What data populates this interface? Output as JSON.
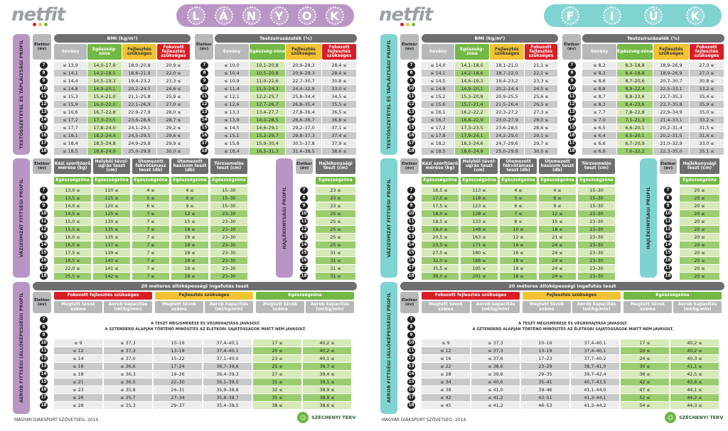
{
  "colors": {
    "girls": "#b995c5",
    "boys": "#7fd3d1",
    "green": "#72b844",
    "lgreen": "#d6e9b8",
    "yellow": "#f1c232",
    "red": "#d71e27",
    "gray": "#6d6e70",
    "lgray": "#d9d9d9"
  },
  "logo": {
    "text": "netfit"
  },
  "footer": {
    "text": "MAGYAR DIÁKSPORT SZÖVETSÉG, 2014.",
    "szechenyi": "SZÉCHENYI TERV"
  },
  "common": {
    "profile1": "TESTÖSSZETÉTEL ÉS TÁPLÁLTSÁGI PROFIL",
    "profile2": "VÁZIZOMZAT FITTSÉGI PROFIL",
    "profile3": "HAJLÉKONYSÁGI PROFIL",
    "profile4": "AEROB FITTSÉGI (ÁLLÓKÉPESSÉGI) PROFIL",
    "age_head": "Életkor (év)",
    "bmi_head": "BMI (kg/m²)",
    "fat_head": "Testzsírszázalék (%)",
    "bmi_cols": [
      "Sovány",
      "Egészség-zóna",
      "Fejlesztés szükséges",
      "Fokozott fejlesztés szükséges"
    ],
    "musc_cols": [
      "Kézi szorítóerő mérése (kg)",
      "Helybõl távol-ugrás teszt (cm)",
      "Ütemezett fekvõtámasz teszt (db)",
      "Ütemezett hasizom teszt (db)",
      "Törzsemelés teszt (cm)"
    ],
    "flex_col": "Hajlékonysági teszt (cm)",
    "zone": "Egészségzóna",
    "aerob_head": "20 méteres állóképességi ingafutás teszt",
    "aerob_zones": [
      "Fokozott fejlesztés szükséges",
      "Fejlesztés szükséges",
      "Egészségzóna"
    ],
    "aerob_sub": [
      "Megtett távok száma",
      "Aerob kapacitás (ml/kg/min)"
    ],
    "note1": "A TESZT MEGISMERÉSE ÉS VÉGREHAJTÁSA JAVASOLT.",
    "note2": "A SZTENDERD ALAPJÁN TÖRTÉNŐ MINŐSÍTÉS AZ ÉLETKORI SAJÁTOSSÁGOK MIATT NEM JAVASOLT.",
    "ages": [
      "7",
      "8",
      "9",
      "10",
      "11",
      "12",
      "13",
      "14",
      "15",
      "16",
      "17",
      "18"
    ]
  },
  "girls": {
    "title": [
      "L",
      "Á",
      "N",
      "Y",
      "O",
      "K"
    ],
    "bmi": [
      [
        "≤ 13,9",
        "14,0–17,9",
        "18,0–20,8",
        "20,9 ≤"
      ],
      [
        "≤ 14,1",
        "14,2–18,5",
        "18,6–21,9",
        "22,0 ≤"
      ],
      [
        "≤ 14,4",
        "14,5–19,3",
        "19,4–23,2",
        "23,3 ≤"
      ],
      [
        "≤ 14,8",
        "14,9–20,1",
        "20,2–24,5",
        "24,6 ≤"
      ],
      [
        "≤ 15,3",
        "15,4–21,0",
        "21,1–25,8",
        "25,9 ≤"
      ],
      [
        "≤ 15,9",
        "16,0–22,0",
        "22,1–26,9",
        "27,0 ≤"
      ],
      [
        "≤ 16,6",
        "16,7–22,8",
        "22,9–27,9",
        "28,0 ≤"
      ],
      [
        "≤ 17,2",
        "17,3–23,5",
        "23,6–28,6",
        "28,7 ≤"
      ],
      [
        "≤ 17,7",
        "17,8–24,0",
        "24,1–29,1",
        "29,2 ≤"
      ],
      [
        "≤ 18,1",
        "18,2–24,4",
        "24,5–29,5",
        "29,6 ≤"
      ],
      [
        "≤ 18,4",
        "18,5–24,8",
        "24,9–29,8",
        "29,9 ≤"
      ],
      [
        "≤ 18,5",
        "18,6–24,9",
        "25,0–29,9",
        "30,0 ≤"
      ]
    ],
    "fat": [
      [
        "≤ 10,0",
        "10,1–20,8",
        "20,9–28,3",
        "28,4 ≤"
      ],
      [
        "≤ 10,4",
        "10,5–20,8",
        "20,9–28,3",
        "28,4 ≤"
      ],
      [
        "≤ 10,9",
        "11,0–22,6",
        "22,7–30,7",
        "30,8 ≤"
      ],
      [
        "≤ 11,4",
        "11,5–24,3",
        "24,4–32,9",
        "33,0 ≤"
      ],
      [
        "≤ 12,1",
        "12,2–25,7",
        "25,8–34,4",
        "34,5 ≤"
      ],
      [
        "≤ 12,6",
        "12,7–26,7",
        "26,8–35,4",
        "35,5 ≤"
      ],
      [
        "≤ 13,3",
        "13,4–27,7",
        "27,8–36,4",
        "36,5 ≤"
      ],
      [
        "≤ 13,9",
        "14,0–28,5",
        "28,6–36,7",
        "36,8 ≤"
      ],
      [
        "≤ 14,5",
        "14,6–29,1",
        "29,2–37,0",
        "37,1 ≤"
      ],
      [
        "≤ 15,1",
        "15,2–29,7",
        "29,8–37,3",
        "37,4 ≤"
      ],
      [
        "≤ 15,8",
        "15,9–30,4",
        "30,5–37,8",
        "37,9 ≤"
      ],
      [
        "≤ 16,4",
        "16,5–31,3",
        "31,4–38,5",
        "38,6 ≤"
      ]
    ],
    "musc": [
      [
        "13,0 ≤",
        "110 ≤",
        "4 ≤",
        "4 ≤",
        "15–30"
      ],
      [
        "13,5 ≤",
        "115 ≤",
        "5 ≤",
        "6 ≤",
        "15–30"
      ],
      [
        "14,0 ≤",
        "120 ≤",
        "6 ≤",
        "9 ≤",
        "15–30"
      ],
      [
        "14,5 ≤",
        "125 ≤",
        "7 ≤",
        "12 ≤",
        "23–30"
      ],
      [
        "15,0 ≤",
        "130 ≤",
        "7 ≤",
        "15 ≤",
        "23–30"
      ],
      [
        "15,5 ≤",
        "135 ≤",
        "7 ≤",
        "18 ≤",
        "23–30"
      ],
      [
        "16,0 ≤",
        "135 ≤",
        "7 ≤",
        "18 ≤",
        "23–30"
      ],
      [
        "16,5 ≤",
        "137 ≤",
        "7 ≤",
        "18 ≤",
        "23–30"
      ],
      [
        "17,5 ≤",
        "139 ≤",
        "7 ≤",
        "18 ≤",
        "23–30"
      ],
      [
        "19,5 ≤",
        "140 ≤",
        "7 ≤",
        "18 ≤",
        "23–30"
      ],
      [
        "22,0 ≤",
        "141 ≤",
        "7 ≤",
        "18 ≤",
        "23–30"
      ],
      [
        "25,5 ≤",
        "142 ≤",
        "7 ≤",
        "18 ≤",
        "23–30"
      ]
    ],
    "flex": [
      "23 ≤",
      "23 ≤",
      "23 ≤",
      "25 ≤",
      "25 ≤",
      "25 ≤",
      "25 ≤",
      "25 ≤",
      "31 ≤",
      "31 ≤",
      "31 ≤",
      "31 ≤"
    ],
    "aerob": [
      [
        "≤ 9",
        "≤ 37,3",
        "10–16",
        "37,4–40,1",
        "17 ≤",
        "40,2 ≤"
      ],
      [
        "≤ 12",
        "≤ 37,3",
        "13–19",
        "37,4–40,1",
        "20 ≤",
        "40,2 ≤"
      ],
      [
        "≤ 14",
        "≤ 37,0",
        "15–22",
        "37,1–40,0",
        "23 ≤",
        "40,1 ≤"
      ],
      [
        "≤ 16",
        "≤ 36,6",
        "17–24",
        "36,7–39,6",
        "25 ≤",
        "39,7 ≤"
      ],
      [
        "≤ 18",
        "≤ 36,3",
        "19–26",
        "36,4–39,3",
        "27 ≤",
        "39,4 ≤"
      ],
      [
        "≤ 21",
        "≤ 36,0",
        "22–30",
        "36,1–39,0",
        "31 ≤",
        "39,1 ≤"
      ],
      [
        "≤ 23",
        "≤ 35,8",
        "24–31",
        "35,9–38,8",
        "32 ≤",
        "38,9 ≤"
      ],
      [
        "≤ 26",
        "≤ 35,7",
        "27–34",
        "35,8–38,7",
        "35 ≤",
        "38,8 ≤"
      ],
      [
        "≤ 28",
        "≤ 35,3",
        "29–37",
        "35,4–38,5",
        "38 ≤",
        "38,6 ≤"
      ]
    ]
  },
  "boys": {
    "title": [
      "F",
      "I",
      "Ú",
      "K"
    ],
    "bmi": [
      [
        "≤ 14,0",
        "14,1–18,0",
        "18,1–21,0",
        "21,1 ≤"
      ],
      [
        "≤ 14,1",
        "14,2–18,6",
        "18,7–22,0",
        "22,1 ≤"
      ],
      [
        "≤ 14,5",
        "14,6–19,3",
        "19,4–23,2",
        "23,3 ≤"
      ],
      [
        "≤ 14,8",
        "14,9–20,1",
        "20,2–24,4",
        "24,5 ≤"
      ],
      [
        "≤ 15,2",
        "15,3–20,8",
        "20,9–25,5",
        "25,6 ≤"
      ],
      [
        "≤ 15,6",
        "15,7–21,4",
        "21,5–26,4",
        "26,5 ≤"
      ],
      [
        "≤ 16,1",
        "16,2–22,2",
        "22,3–27,2",
        "27,3 ≤"
      ],
      [
        "≤ 16,7",
        "16,8–22,9",
        "23,0–27,9",
        "28,0 ≤"
      ],
      [
        "≤ 17,2",
        "17,3–23,5",
        "23,6–28,5",
        "28,6 ≤"
      ],
      [
        "≤ 17,8",
        "17,9–24,1",
        "24,2–29,0",
        "29,1 ≤"
      ],
      [
        "≤ 18,2",
        "18,3–24,6",
        "24,7–29,6",
        "29,7 ≤"
      ],
      [
        "≤ 18,5",
        "18,6–24,9",
        "25,0–29,9",
        "30,0 ≤"
      ]
    ],
    "fat": [
      [
        "≤ 8,2",
        "8,3–18,8",
        "18,9–26,9",
        "27,0 ≤"
      ],
      [
        "≤ 8,3",
        "8,4–18,8",
        "18,9–26,9",
        "27,0 ≤"
      ],
      [
        "≤ 8,6",
        "8,7–20,6",
        "20,7–30,7",
        "30,8 ≤"
      ],
      [
        "≤ 8,8",
        "8,9–22,4",
        "22,5–33,1",
        "33,2 ≤"
      ],
      [
        "≤ 8,7",
        "8,8–23,6",
        "23,7–35,3",
        "35,4 ≤"
      ],
      [
        "≤ 8,3",
        "8,4–23,6",
        "23,7–35,8",
        "35,9 ≤"
      ],
      [
        "≤ 7,7",
        "7,8–22,8",
        "22,9–34,9",
        "35,0 ≤"
      ],
      [
        "≤ 7,0",
        "7,1–21,3",
        "21,4–33,1",
        "33,2 ≤"
      ],
      [
        "≤ 6,5",
        "6,6–20,1",
        "20,2–31,4",
        "31,5 ≤"
      ],
      [
        "≤ 6,4",
        "6,5–20,1",
        "20,2–31,5",
        "31,6 ≤"
      ],
      [
        "≤ 6,6",
        "6,7–20,9",
        "21,0–32,9",
        "33,0 ≤"
      ],
      [
        "≤ 6,9",
        "7,0–22,2",
        "22,3–35,0",
        "35,1 ≤"
      ]
    ],
    "musc": [
      [
        "16,5 ≤",
        "113 ≤",
        "4 ≤",
        "4 ≤",
        "15–30"
      ],
      [
        "17,0 ≤",
        "118 ≤",
        "5 ≤",
        "6 ≤",
        "15–30"
      ],
      [
        "17,5 ≤",
        "123 ≤",
        "6 ≤",
        "9 ≤",
        "15–30"
      ],
      [
        "18,0 ≤",
        "128 ≤",
        "7 ≤",
        "12 ≤",
        "23–30"
      ],
      [
        "18,5 ≤",
        "133 ≤",
        "8 ≤",
        "15 ≤",
        "23–30"
      ],
      [
        "19,0 ≤",
        "148 ≤",
        "10 ≤",
        "18 ≤",
        "23–30"
      ],
      [
        "20,5 ≤",
        "163 ≤",
        "12 ≤",
        "21 ≤",
        "23–30"
      ],
      [
        "23,5 ≤",
        "171 ≤",
        "14 ≤",
        "24 ≤",
        "23–30"
      ],
      [
        "27,5 ≤",
        "180 ≤",
        "16 ≤",
        "24 ≤",
        "23–30"
      ],
      [
        "32,0 ≤",
        "188 ≤",
        "18 ≤",
        "24 ≤",
        "23–30"
      ],
      [
        "35,5 ≤",
        "195 ≤",
        "18 ≤",
        "24 ≤",
        "23–30"
      ],
      [
        "36,0 ≤",
        "201 ≤",
        "18 ≤",
        "24 ≤",
        "23–30"
      ]
    ],
    "flex": [
      "20 ≤",
      "20 ≤",
      "20 ≤",
      "20 ≤",
      "20 ≤",
      "20 ≤",
      "20 ≤",
      "20 ≤",
      "20 ≤",
      "20 ≤",
      "20 ≤",
      "20 ≤"
    ],
    "aerob": [
      [
        "≤ 9",
        "≤ 37,3",
        "10–16",
        "37,4–40,1",
        "17 ≤",
        "40,2 ≤"
      ],
      [
        "≤ 12",
        "≤ 37,3",
        "13–19",
        "37,4–40,1",
        "20 ≤",
        "40,2 ≤"
      ],
      [
        "≤ 16",
        "≤ 37,6",
        "17–23",
        "37,7–40,2",
        "24 ≤",
        "40,3 ≤"
      ],
      [
        "≤ 22",
        "≤ 38,6",
        "23–29",
        "38,7–41,0",
        "30 ≤",
        "41,1 ≤"
      ],
      [
        "≤ 28",
        "≤ 39,6",
        "29–35",
        "39,7–42,4",
        "36 ≤",
        "42,5 ≤"
      ],
      [
        "≤ 34",
        "≤ 40,6",
        "35–41",
        "40,7–43,5",
        "42 ≤",
        "43,6 ≤"
      ],
      [
        "≤ 38",
        "≤ 41,0",
        "39–46",
        "41,1–44,0",
        "47 ≤",
        "44,1 ≤"
      ],
      [
        "≤ 42",
        "≤ 41,2",
        "43–51",
        "41,3–44,1",
        "52 ≤",
        "44,2 ≤"
      ],
      [
        "≤ 45",
        "≤ 41,2",
        "46–53",
        "41,3–44,2",
        "54 ≤",
        "44,3 ≤"
      ]
    ]
  }
}
